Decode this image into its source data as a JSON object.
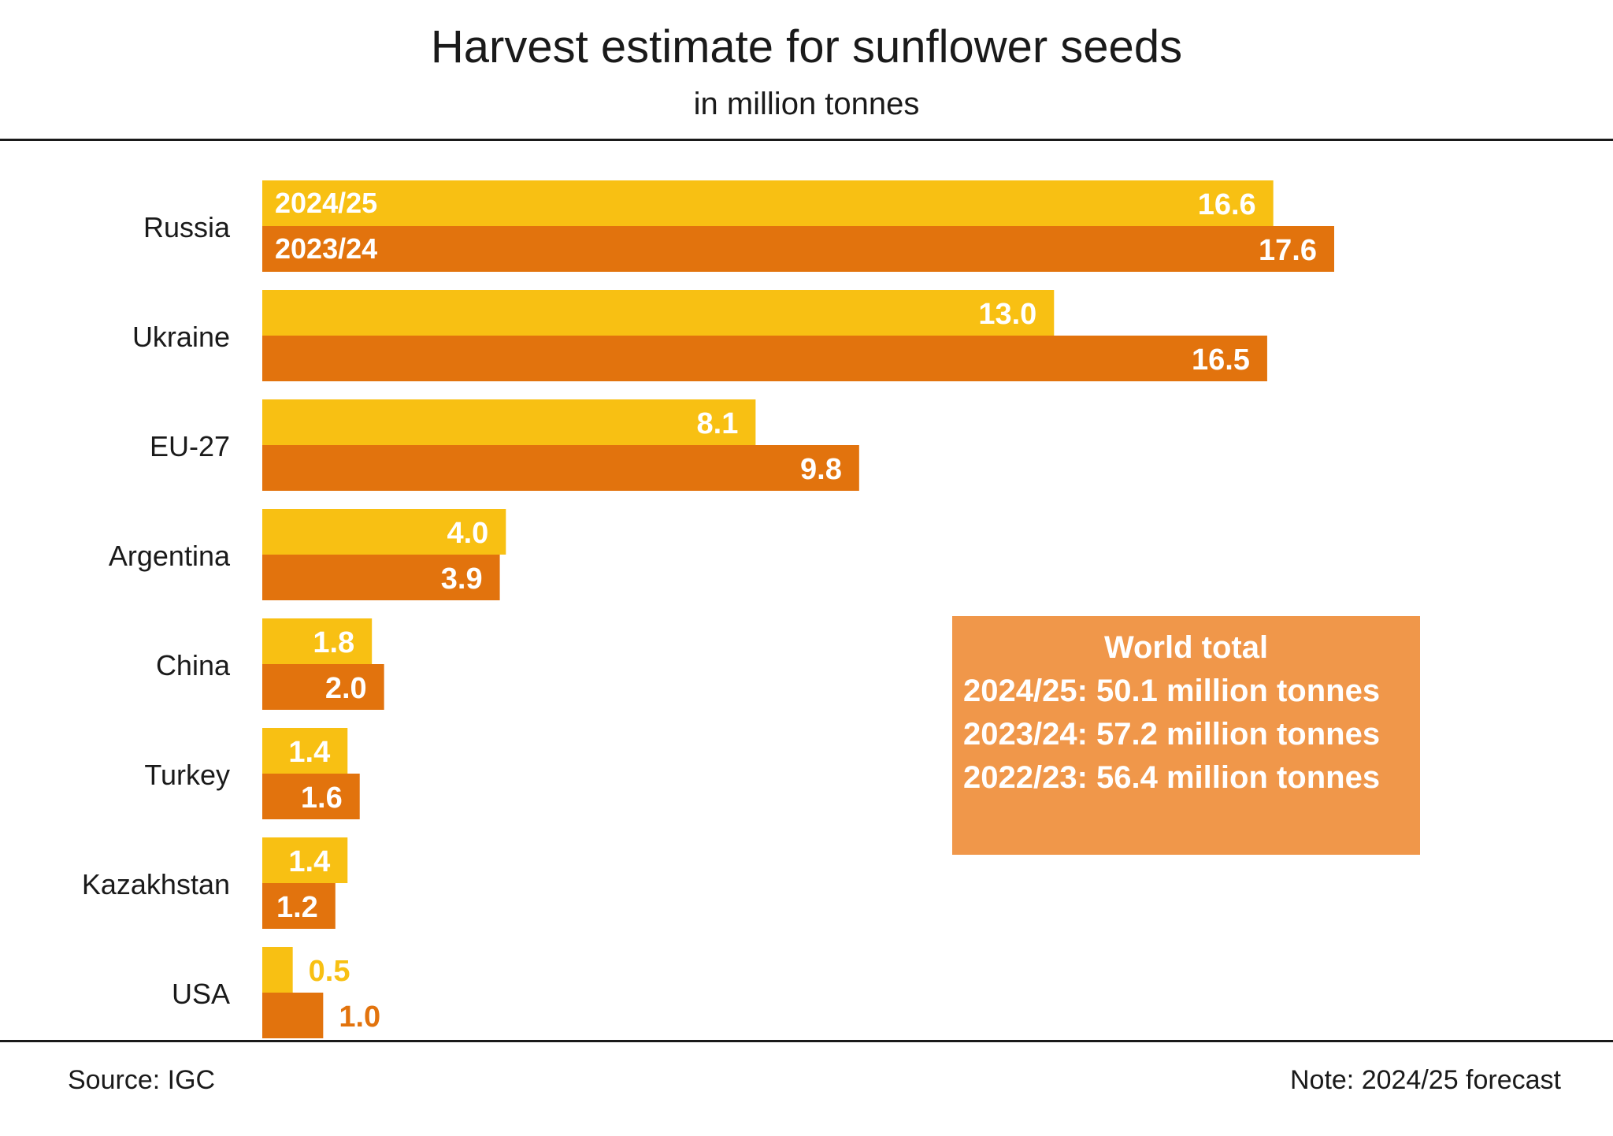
{
  "colors": {
    "current": "#f8c013",
    "previous": "#e2730d",
    "box": "#f0974a",
    "text": "#1a1a1a",
    "white": "#ffffff"
  },
  "footer": {
    "source": "Source:  IGC",
    "note": "Note: 2024/25 forecast"
  },
  "world_total": {
    "title": "World total",
    "lines": [
      "2024/25: 50.1 million tonnes",
      "2023/24: 57.2 million tonnes",
      "2022/23: 56.4 million tonnes"
    ]
  },
  "chart_data": {
    "type": "bar",
    "orientation": "horizontal",
    "title": "Harvest estimate for sunflower seeds",
    "subtitle": "in million tonnes",
    "xlabel": "",
    "ylabel": "",
    "xlim": [
      0,
      17.6
    ],
    "grid": false,
    "categories": [
      "Russia",
      "Ukraine",
      "EU-27",
      "Argentina",
      "China",
      "Turkey",
      "Kazakhstan",
      "USA"
    ],
    "series": [
      {
        "name": "2024/25",
        "values": [
          16.6,
          13.0,
          8.1,
          4.0,
          1.8,
          1.4,
          1.4,
          0.5
        ],
        "labels": [
          "16.6",
          "13.0",
          "8.1",
          "4.0",
          "1.8",
          "1.4",
          "1.4",
          "0.5"
        ]
      },
      {
        "name": "2023/24",
        "values": [
          17.6,
          16.5,
          9.8,
          3.9,
          2.0,
          1.6,
          1.2,
          1.0
        ],
        "labels": [
          "17.6",
          "16.5",
          "9.8",
          "3.9",
          "2.0",
          "1.6",
          "1.2",
          "1.0"
        ]
      }
    ]
  }
}
